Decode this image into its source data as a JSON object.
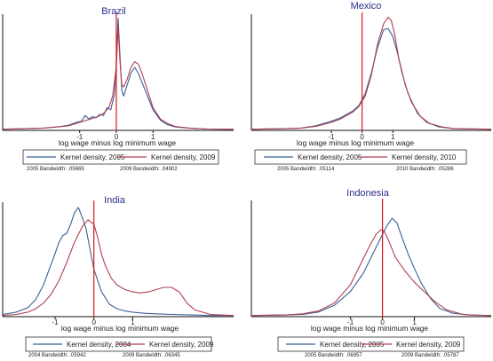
{
  "colors": {
    "blue": "#3a5f96",
    "red": "#b0404f",
    "vline": "#e0161a",
    "axis": "#111111",
    "title": "#2a2f8a"
  },
  "chart_data": [
    {
      "id": "brazil",
      "type": "line",
      "title": "Brazil",
      "xlabel": "log wage minus log minimum wage",
      "xticks": [
        "-1",
        "0",
        "1"
      ],
      "xlim": [
        -3.1,
        3.2
      ],
      "ylim": [
        0,
        1.0
      ],
      "vline": 0,
      "bandwidth_notes": [
        "2005 Bandwidth: .05665",
        "2009 Bandwidth: .04902"
      ],
      "series": [
        {
          "name": "Kernel density, 2005",
          "color": "blue",
          "x": [
            -3.1,
            -2.5,
            -2.0,
            -1.6,
            -1.3,
            -1.1,
            -0.95,
            -0.85,
            -0.75,
            -0.65,
            -0.55,
            -0.45,
            -0.35,
            -0.25,
            -0.15,
            -0.05,
            0,
            0.05,
            0.1,
            0.15,
            0.2,
            0.3,
            0.4,
            0.5,
            0.6,
            0.7,
            0.8,
            0.9,
            1.0,
            1.2,
            1.4,
            1.6,
            2.0,
            2.5,
            3.2
          ],
          "y": [
            0.01,
            0.015,
            0.02,
            0.03,
            0.045,
            0.07,
            0.08,
            0.13,
            0.1,
            0.12,
            0.11,
            0.14,
            0.13,
            0.2,
            0.18,
            0.32,
            0.6,
            0.98,
            0.65,
            0.35,
            0.3,
            0.4,
            0.5,
            0.55,
            0.5,
            0.42,
            0.34,
            0.26,
            0.18,
            0.09,
            0.05,
            0.03,
            0.02,
            0.012,
            0.01
          ]
        },
        {
          "name": "Kernel density, 2009",
          "color": "red",
          "x": [
            -3.1,
            -2.5,
            -2.0,
            -1.6,
            -1.3,
            -1.1,
            -0.9,
            -0.7,
            -0.5,
            -0.35,
            -0.2,
            -0.1,
            0,
            0.05,
            0.1,
            0.15,
            0.2,
            0.3,
            0.4,
            0.5,
            0.6,
            0.7,
            0.8,
            0.9,
            1.0,
            1.2,
            1.4,
            1.6,
            2.0,
            2.5,
            3.2
          ],
          "y": [
            0.01,
            0.015,
            0.02,
            0.03,
            0.04,
            0.06,
            0.08,
            0.1,
            0.12,
            0.15,
            0.2,
            0.3,
            0.55,
            0.9,
            0.6,
            0.4,
            0.38,
            0.45,
            0.55,
            0.6,
            0.58,
            0.5,
            0.4,
            0.3,
            0.2,
            0.1,
            0.06,
            0.035,
            0.02,
            0.012,
            0.01
          ]
        }
      ]
    },
    {
      "id": "mexico",
      "type": "line",
      "title": "Mexico",
      "xlabel": "log wage minus log minimum wage",
      "xticks": [
        "-1",
        "0",
        "1"
      ],
      "xlim": [
        -3.6,
        4.2
      ],
      "ylim": [
        0,
        1.0
      ],
      "vline": 0,
      "bandwidth_notes": [
        "2005 Bandwidth: .05114",
        "2010 Bandwidth: .05286"
      ],
      "series": [
        {
          "name": "Kernel density, 2005",
          "color": "blue",
          "x": [
            -3.6,
            -2.5,
            -2.0,
            -1.5,
            -1.0,
            -0.7,
            -0.5,
            -0.3,
            -0.1,
            0.1,
            0.3,
            0.5,
            0.7,
            0.85,
            1.0,
            1.15,
            1.3,
            1.5,
            1.8,
            2.1,
            2.5,
            3.0,
            4.2
          ],
          "y": [
            0.01,
            0.015,
            0.02,
            0.04,
            0.08,
            0.11,
            0.14,
            0.17,
            0.22,
            0.32,
            0.5,
            0.72,
            0.88,
            0.89,
            0.82,
            0.68,
            0.5,
            0.32,
            0.15,
            0.07,
            0.03,
            0.015,
            0.01
          ]
        },
        {
          "name": "Kernel density, 2010",
          "color": "red",
          "x": [
            -3.6,
            -2.5,
            -2.0,
            -1.5,
            -1.0,
            -0.7,
            -0.5,
            -0.3,
            -0.1,
            0.1,
            0.3,
            0.5,
            0.7,
            0.85,
            0.95,
            1.05,
            1.2,
            1.4,
            1.6,
            1.9,
            2.2,
            2.6,
            3.0,
            4.2
          ],
          "y": [
            0.01,
            0.015,
            0.02,
            0.035,
            0.07,
            0.1,
            0.13,
            0.16,
            0.21,
            0.3,
            0.48,
            0.75,
            0.93,
            0.99,
            0.96,
            0.85,
            0.62,
            0.4,
            0.25,
            0.12,
            0.06,
            0.03,
            0.015,
            0.01
          ]
        }
      ]
    },
    {
      "id": "india",
      "type": "line",
      "title": "India",
      "xlabel": "log wage minus log minimum wage",
      "xticks": [
        "-1",
        "0",
        "1"
      ],
      "xlim": [
        -2.35,
        3.6
      ],
      "ylim": [
        0,
        1.0
      ],
      "vline": 0,
      "bandwidth_notes": [
        "2004 Bandwidth: .05942",
        "2009 Bandwidth: .06345"
      ],
      "series": [
        {
          "name": "Kernel density, 2004",
          "color": "blue",
          "x": [
            -2.35,
            -2.0,
            -1.7,
            -1.5,
            -1.3,
            -1.15,
            -1.0,
            -0.9,
            -0.8,
            -0.7,
            -0.6,
            -0.5,
            -0.4,
            -0.3,
            -0.2,
            -0.1,
            0,
            0.2,
            0.4,
            0.6,
            0.8,
            1.0,
            1.3,
            1.6,
            2.0,
            2.5,
            3.0,
            3.6
          ],
          "y": [
            0.02,
            0.04,
            0.08,
            0.15,
            0.28,
            0.42,
            0.56,
            0.66,
            0.72,
            0.74,
            0.82,
            0.92,
            0.97,
            0.88,
            0.78,
            0.6,
            0.42,
            0.22,
            0.11,
            0.07,
            0.05,
            0.04,
            0.03,
            0.025,
            0.02,
            0.015,
            0.01,
            0.01
          ]
        },
        {
          "name": "Kernel density, 2009",
          "color": "red",
          "x": [
            -2.35,
            -2.0,
            -1.7,
            -1.5,
            -1.3,
            -1.1,
            -0.9,
            -0.7,
            -0.5,
            -0.3,
            -0.15,
            0,
            0.1,
            0.2,
            0.3,
            0.45,
            0.6,
            0.8,
            1.0,
            1.2,
            1.4,
            1.6,
            1.8,
            2.0,
            2.2,
            2.4,
            2.6,
            3.0,
            3.6
          ],
          "y": [
            0.01,
            0.02,
            0.04,
            0.07,
            0.12,
            0.2,
            0.32,
            0.48,
            0.66,
            0.8,
            0.86,
            0.82,
            0.7,
            0.55,
            0.45,
            0.34,
            0.28,
            0.24,
            0.22,
            0.21,
            0.22,
            0.24,
            0.26,
            0.26,
            0.22,
            0.12,
            0.06,
            0.02,
            0.01
          ]
        }
      ]
    },
    {
      "id": "indonesia",
      "type": "line",
      "title": "Indonesia",
      "xlabel": "log wage minus log minimum wage",
      "xticks": [
        "-1",
        "0",
        "1"
      ],
      "xlim": [
        -4.1,
        3.4
      ],
      "ylim": [
        0,
        1.0
      ],
      "vline": 0,
      "bandwidth_notes": [
        "2005 Bandwidth: .06957",
        "2009 Bandwidth: .05787"
      ],
      "series": [
        {
          "name": "Kernel density, 2005",
          "color": "blue",
          "x": [
            -4.1,
            -3.0,
            -2.5,
            -2.0,
            -1.5,
            -1.0,
            -0.6,
            -0.3,
            0,
            0.15,
            0.3,
            0.45,
            0.6,
            0.8,
            1.0,
            1.2,
            1.5,
            1.8,
            2.2,
            2.7,
            3.4
          ],
          "y": [
            0.01,
            0.015,
            0.02,
            0.04,
            0.1,
            0.22,
            0.38,
            0.55,
            0.72,
            0.8,
            0.86,
            0.82,
            0.7,
            0.55,
            0.42,
            0.3,
            0.16,
            0.07,
            0.03,
            0.015,
            0.01
          ]
        },
        {
          "name": "Kernel density, 2009",
          "color": "red",
          "x": [
            -4.1,
            -3.0,
            -2.5,
            -2.0,
            -1.5,
            -1.0,
            -0.7,
            -0.4,
            -0.2,
            -0.05,
            0.05,
            0.2,
            0.4,
            0.7,
            1.0,
            1.3,
            1.6,
            2.0,
            2.5,
            3.0,
            3.4
          ],
          "y": [
            0.01,
            0.015,
            0.025,
            0.05,
            0.12,
            0.28,
            0.45,
            0.62,
            0.72,
            0.76,
            0.75,
            0.66,
            0.52,
            0.4,
            0.3,
            0.22,
            0.14,
            0.06,
            0.02,
            0.012,
            0.01
          ]
        }
      ]
    }
  ]
}
